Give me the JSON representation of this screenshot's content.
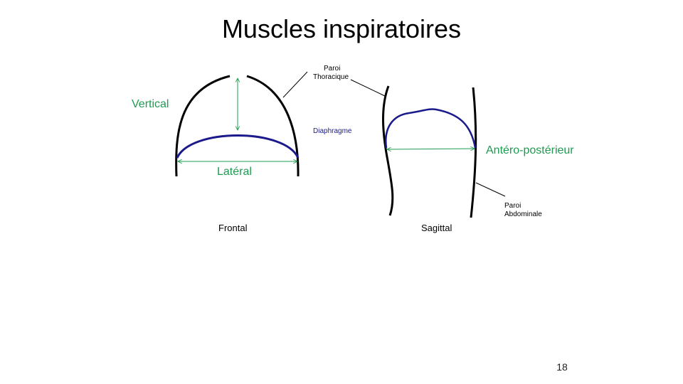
{
  "slide": {
    "title": "Muscles inspiratoires",
    "page_number": "18"
  },
  "labels": {
    "vertical": "Vertical",
    "lateral": "Latéral",
    "antero_posterior": "Antéro-postérieur",
    "paroi_thoracique_1": "Paroi",
    "paroi_thoracique_2": "Thoracique",
    "diaphragme": "Diaphragme",
    "paroi_abdominale_1": "Paroi",
    "paroi_abdominale_2": "Abdominale",
    "frontal": "Frontal",
    "sagittal": "Sagittal"
  },
  "colors": {
    "measure_green": "#1e9b50",
    "diaphragm_blue": "#1a1a8c",
    "wall_black": "#000000"
  }
}
